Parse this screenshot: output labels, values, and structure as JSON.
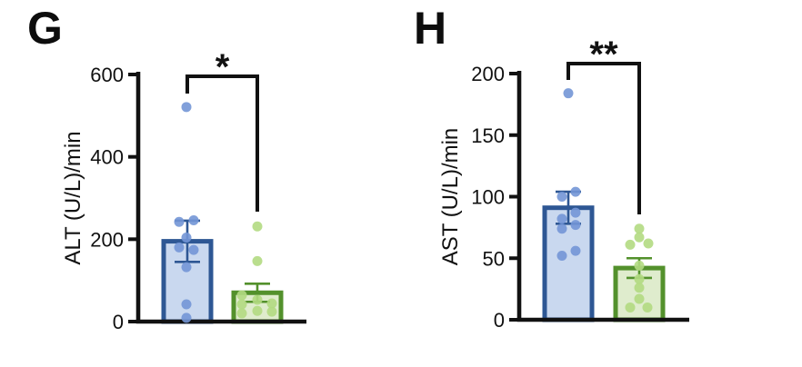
{
  "figure": {
    "background": "#ffffff",
    "panels": [
      {
        "label": "G"
      },
      {
        "label": "H"
      }
    ]
  },
  "chart_data": [
    {
      "type": "bar",
      "panel": "G",
      "title": "",
      "xlabel": "",
      "ylabel": "ALT (U/L)/min",
      "ylim": [
        0,
        600
      ],
      "yticks": [
        0,
        200,
        400,
        600
      ],
      "grid": false,
      "legend": "none",
      "significance": "*",
      "groups": [
        {
          "name": "blue-group",
          "mean": 195,
          "sem_high": 245,
          "sem_low": 145,
          "points": [
            [
              521,
              -1
            ],
            [
              246,
              7
            ],
            [
              242,
              -9
            ],
            [
              204,
              -1
            ],
            [
              180,
              -9
            ],
            [
              174,
              7
            ],
            [
              132,
              -1
            ],
            [
              42,
              -1
            ],
            [
              9,
              -1
            ]
          ],
          "colors": {
            "fill": "#c9d8ef",
            "border": "#2e5794",
            "point": "#7396d6"
          }
        },
        {
          "name": "green-group",
          "mean": 70,
          "sem_high": 92,
          "sem_low": 48,
          "points": [
            [
              231,
              0
            ],
            [
              147,
              0
            ],
            [
              64,
              -17
            ],
            [
              53,
              0
            ],
            [
              44,
              16
            ],
            [
              42,
              -17
            ],
            [
              26,
              0
            ],
            [
              24,
              16
            ],
            [
              20,
              -17
            ]
          ],
          "colors": {
            "fill": "#dfeccd",
            "border": "#53912c",
            "point": "#b3da82"
          }
        }
      ]
    },
    {
      "type": "bar",
      "panel": "H",
      "title": "",
      "xlabel": "",
      "ylabel": "AST (U/L)/min",
      "ylim": [
        0,
        200
      ],
      "yticks": [
        0,
        50,
        100,
        150,
        200
      ],
      "grid": false,
      "legend": "none",
      "significance": "**",
      "groups": [
        {
          "name": "blue-group",
          "mean": 91,
          "sem_high": 104,
          "sem_low": 78,
          "points": [
            [
              184,
              0
            ],
            [
              104,
              8
            ],
            [
              100,
              -7
            ],
            [
              87,
              8
            ],
            [
              82,
              -7
            ],
            [
              77,
              8
            ],
            [
              74,
              -7
            ],
            [
              56,
              8
            ],
            [
              52,
              -7
            ]
          ],
          "colors": {
            "fill": "#c9d8ef",
            "border": "#2e5794",
            "point": "#7396d6"
          }
        },
        {
          "name": "green-group",
          "mean": 42,
          "sem_high": 50,
          "sem_low": 34,
          "points": [
            [
              74,
              0
            ],
            [
              67,
              0
            ],
            [
              62,
              10
            ],
            [
              61,
              -10
            ],
            [
              44,
              0
            ],
            [
              33,
              0
            ],
            [
              26,
              0
            ],
            [
              17,
              0
            ],
            [
              10,
              -10
            ],
            [
              10,
              9
            ]
          ],
          "colors": {
            "fill": "#dfeccd",
            "border": "#53912c",
            "point": "#b3da82"
          }
        }
      ]
    }
  ]
}
